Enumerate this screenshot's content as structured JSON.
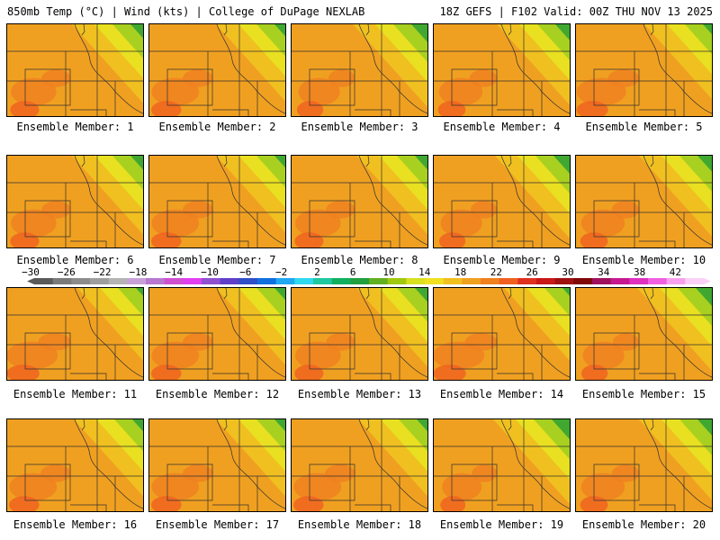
{
  "header": {
    "left": "850mb Temp (°C) | Wind (kts) | College of DuPage NEXLAB",
    "right": "18Z GEFS | F102 Valid: 00Z THU NOV 13 2025"
  },
  "members": [
    {
      "label": "Ensemble Member: 1",
      "warmth": 0.55
    },
    {
      "label": "Ensemble Member: 2",
      "warmth": 0.6
    },
    {
      "label": "Ensemble Member: 3",
      "warmth": 0.45
    },
    {
      "label": "Ensemble Member: 4",
      "warmth": 0.5
    },
    {
      "label": "Ensemble Member: 5",
      "warmth": 0.65
    },
    {
      "label": "Ensemble Member: 6",
      "warmth": 0.55
    },
    {
      "label": "Ensemble Member: 7",
      "warmth": 0.6
    },
    {
      "label": "Ensemble Member: 8",
      "warmth": 0.55
    },
    {
      "label": "Ensemble Member: 9",
      "warmth": 0.45
    },
    {
      "label": "Ensemble Member: 10",
      "warmth": 0.5
    },
    {
      "label": "Ensemble Member: 11",
      "warmth": 0.7
    },
    {
      "label": "Ensemble Member: 12",
      "warmth": 0.6
    },
    {
      "label": "Ensemble Member: 13",
      "warmth": 0.55
    },
    {
      "label": "Ensemble Member: 14",
      "warmth": 0.7
    },
    {
      "label": "Ensemble Member: 15",
      "warmth": 0.45
    },
    {
      "label": "Ensemble Member: 16",
      "warmth": 0.6
    },
    {
      "label": "Ensemble Member: 17",
      "warmth": 0.6
    },
    {
      "label": "Ensemble Member: 18",
      "warmth": 0.6
    },
    {
      "label": "Ensemble Member: 19",
      "warmth": 0.4
    },
    {
      "label": "Ensemble Member: 20",
      "warmth": 0.5
    }
  ],
  "colorbar": {
    "labels": [
      "−30",
      "−26",
      "−22",
      "−18",
      "−14",
      "−10",
      "−6",
      "−2",
      "2",
      "6",
      "10",
      "14",
      "18",
      "22",
      "26",
      "30",
      "34",
      "38",
      "42"
    ],
    "colors": [
      "#5a5a5a",
      "#7a7a7a",
      "#8c8c8c",
      "#9e9e9e",
      "#b4b4b4",
      "#c8a0d8",
      "#b878d0",
      "#d050d0",
      "#e040f0",
      "#9050d0",
      "#6040c8",
      "#3050c8",
      "#1070e0",
      "#20a8f0",
      "#30d8f0",
      "#20c8a0",
      "#10b060",
      "#20a040",
      "#60b020",
      "#a0c810",
      "#d8e020",
      "#f0e020",
      "#f0c020",
      "#f0a020",
      "#f08020",
      "#f06020",
      "#e03020",
      "#c81818",
      "#a01010",
      "#800808",
      "#a01060",
      "#c81890",
      "#e030c0",
      "#f060e0",
      "#f8a0f0",
      "#fad0f8"
    ]
  }
}
